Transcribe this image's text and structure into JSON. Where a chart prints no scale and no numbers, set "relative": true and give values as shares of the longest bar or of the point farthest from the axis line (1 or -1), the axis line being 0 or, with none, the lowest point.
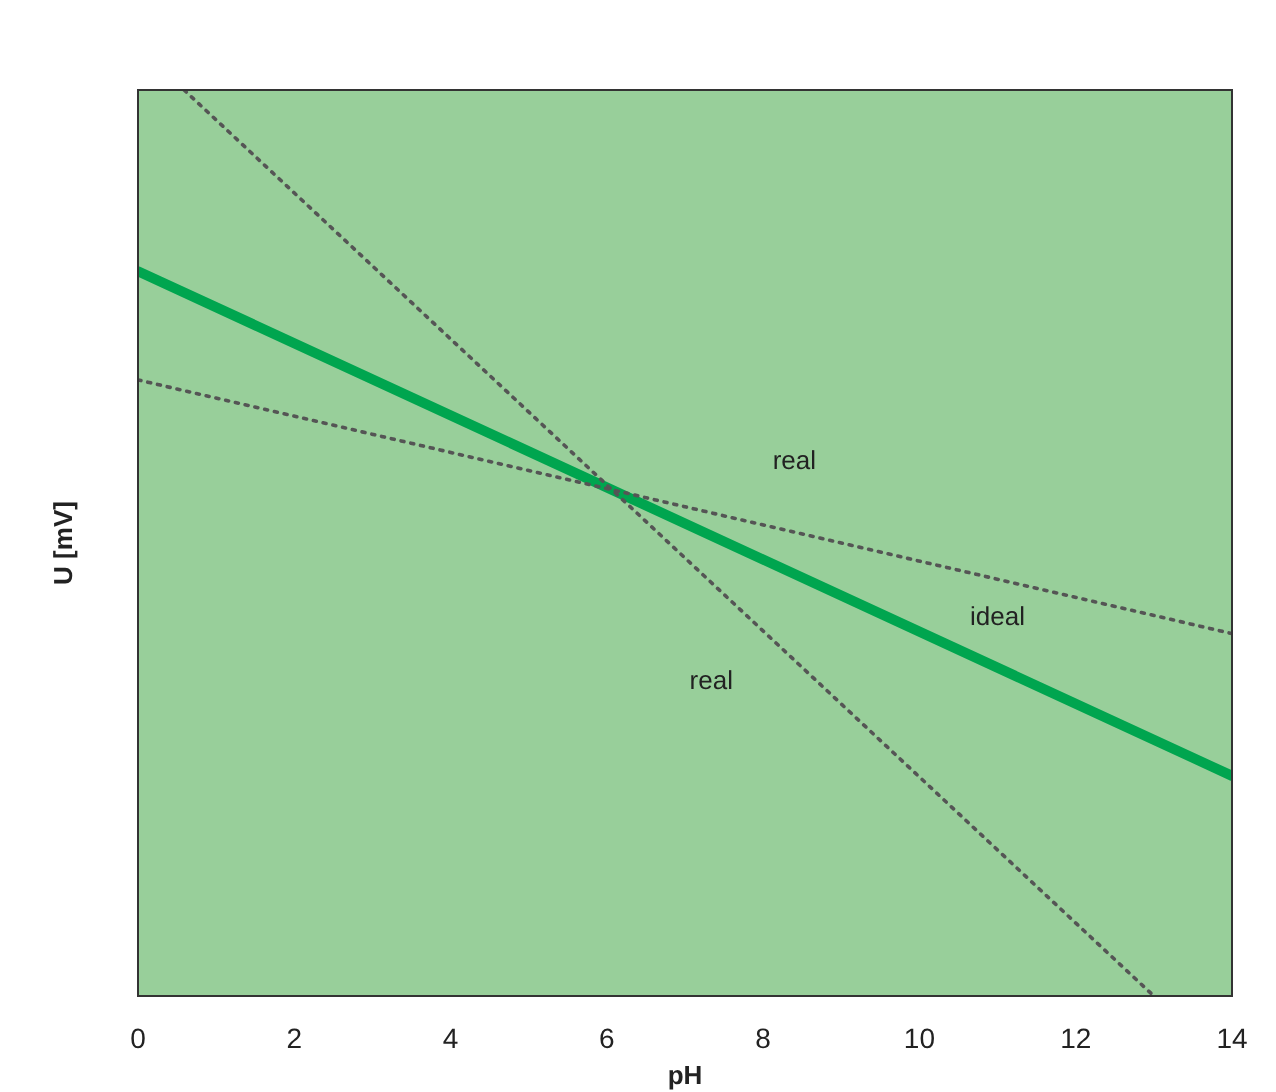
{
  "chart_data": {
    "type": "line",
    "xlabel": "pH",
    "ylabel": "U [mV]",
    "relative": true,
    "xlim": [
      0,
      14
    ],
    "xticks": [
      0,
      2,
      4,
      6,
      8,
      10,
      12,
      14
    ],
    "series": [
      {
        "name": "ideal",
        "color": "#00a54f",
        "x": [
          0,
          14
        ],
        "values": [
          0.8,
          0.243
        ],
        "line_style": "solid"
      },
      {
        "name": "real",
        "color": "#555555",
        "x": [
          0,
          14
        ],
        "values": [
          0.68,
          0.4
        ],
        "line_style": "dotted"
      },
      {
        "name": "real",
        "color": "#555555",
        "x": [
          0.59,
          13.0
        ],
        "values": [
          1,
          0
        ],
        "line_style": "dotted"
      }
    ]
  }
}
